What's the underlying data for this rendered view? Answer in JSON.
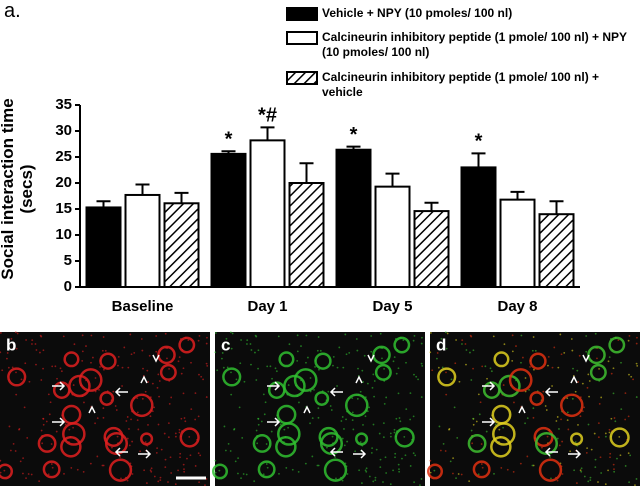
{
  "panel_label": "a.",
  "chart_data": {
    "type": "bar",
    "ylabel": "Social interaction time (secs)",
    "categories": [
      "Baseline",
      "Day 1",
      "Day 5",
      "Day 8"
    ],
    "series": [
      {
        "name": "Vehicle + NPY (10 pmoles/ 100 nl)",
        "color": "#000000",
        "hatch": false,
        "values": [
          15.3,
          25.6,
          26.4,
          23.0
        ],
        "errors": [
          1.2,
          0.5,
          0.6,
          2.7
        ],
        "annotations": [
          null,
          "*",
          "*",
          "*"
        ]
      },
      {
        "name": "Calcineurin inhibitory peptide (1 pmole/ 100 nl) + NPY (10 pmoles/ 100 nl)",
        "color": "#ffffff",
        "hatch": false,
        "values": [
          17.7,
          28.2,
          19.3,
          16.8
        ],
        "errors": [
          2.0,
          2.5,
          2.5,
          1.5
        ],
        "annotations": [
          null,
          "*#",
          null,
          null
        ]
      },
      {
        "name": "Calcineurin inhibitory peptide (1 pmole/ 100 nl) + vehicle",
        "color": "#ffffff",
        "hatch": true,
        "values": [
          16.1,
          20.0,
          14.6,
          14.0
        ],
        "errors": [
          2.0,
          3.8,
          1.6,
          2.5
        ],
        "annotations": [
          null,
          null,
          null,
          null
        ]
      }
    ],
    "ylim": [
      0,
      35
    ],
    "yticks": [
      0,
      5,
      10,
      15,
      20,
      25,
      30,
      35
    ]
  },
  "images": [
    {
      "label": "b"
    },
    {
      "label": "c"
    },
    {
      "label": "d"
    }
  ]
}
